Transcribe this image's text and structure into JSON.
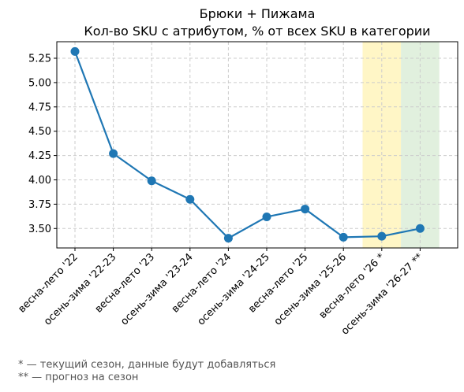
{
  "chart_data": {
    "type": "line",
    "title": "Брюки + Пижама",
    "subtitle": "Кол-во SKU с атрибутом, % от всех SKU в категории",
    "categories": [
      "весна-лето '22",
      "осень-зима '22-23",
      "весна-лето '23",
      "осень-зима '23-24",
      "весна-лето '24",
      "осень-зима '24-25",
      "весна-лето '25",
      "осень-зима '25-26",
      "весна-лето '26 *",
      "осень-зима '26-27 **"
    ],
    "series": [
      {
        "values": [
          5.32,
          4.27,
          3.99,
          3.8,
          3.4,
          3.62,
          3.7,
          3.41,
          3.42,
          3.5
        ]
      }
    ],
    "yticks": [
      "3.50",
      "3.75",
      "4.00",
      "4.25",
      "4.50",
      "4.75",
      "5.00",
      "5.25"
    ],
    "ylim": [
      3.3,
      5.42
    ],
    "grid": true,
    "line_color": "#1f77b4",
    "highlights": [
      {
        "category_index": 8,
        "color": "#fff4b8"
      },
      {
        "category_index": 9,
        "color": "#d9ecd6"
      }
    ]
  },
  "footnotes": [
    "* — текущий сезон, данные будут добавляться",
    "** — прогноз на сезон"
  ]
}
